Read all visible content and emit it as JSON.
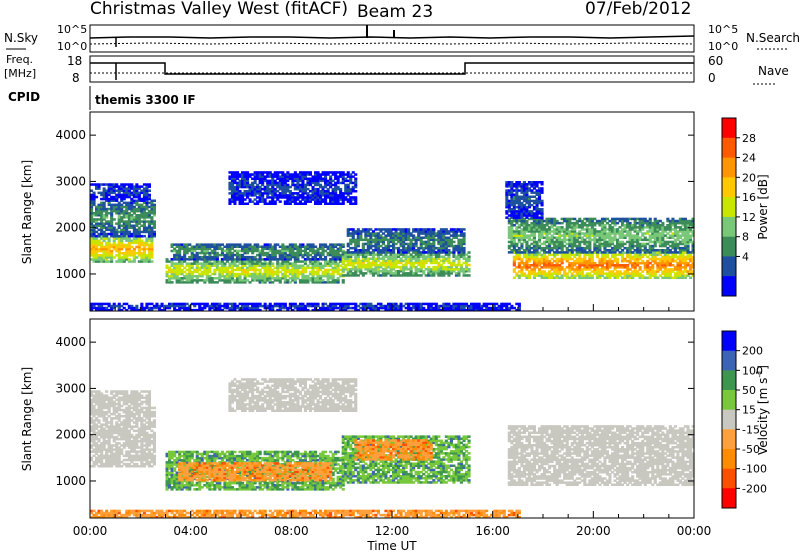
{
  "header": {
    "station": "Christmas Valley West (fitACF)",
    "beam": "Beam 23",
    "date": "07/Feb/2012",
    "cpid_label": "CPID",
    "cpid_value": "themis 3300 IF"
  },
  "side_panels": {
    "nsky_label": "N.Sky",
    "nsky_ticks": [
      "10^5",
      "10^0"
    ],
    "nsearch_label": "N.Search",
    "nsearch_ticks": [
      "10^5",
      "10^0"
    ],
    "freq_label_line1": "Freq.",
    "freq_label_line2": "[MHz]",
    "freq_ticks": [
      "18",
      "8"
    ],
    "nave_label": "Nave",
    "nave_ticks": [
      "60",
      "0"
    ]
  },
  "chart_data": [
    {
      "type": "heatmap",
      "name": "power",
      "xlabel": "",
      "ylabel": "Slant Range [km]",
      "x_range_hours": [
        0,
        24
      ],
      "ylim": [
        200,
        4500
      ],
      "y_ticks": [
        "1000",
        "2000",
        "3000",
        "4000"
      ],
      "colorbar": {
        "label": "Power [dB]",
        "ticks": [
          "28",
          "24",
          "20",
          "16",
          "12",
          "8",
          "4"
        ],
        "colors": [
          "#ff0000",
          "#ff5a00",
          "#ff9600",
          "#ffc800",
          "#c8e600",
          "#78c878",
          "#3c8c5a",
          "#1e50a0",
          "#0000ff"
        ]
      },
      "echo_bands": [
        {
          "t0": 0.0,
          "t1": 2.5,
          "r0": 1250,
          "r1": 1800,
          "level": 22
        },
        {
          "t0": 0.0,
          "t1": 2.6,
          "r0": 1800,
          "r1": 2600,
          "level": 11
        },
        {
          "t0": 0.0,
          "t1": 2.4,
          "r0": 2600,
          "r1": 2950,
          "level": 6
        },
        {
          "t0": 3.0,
          "t1": 10.0,
          "r0": 800,
          "r1": 1300,
          "level": 18
        },
        {
          "t0": 3.2,
          "t1": 10.0,
          "r0": 1300,
          "r1": 1650,
          "level": 11
        },
        {
          "t0": 5.5,
          "t1": 10.5,
          "r0": 2500,
          "r1": 3200,
          "level": 6
        },
        {
          "t0": 10.0,
          "t1": 15.0,
          "r0": 950,
          "r1": 1450,
          "level": 18
        },
        {
          "t0": 10.2,
          "t1": 14.8,
          "r0": 1450,
          "r1": 1950,
          "level": 10
        },
        {
          "t0": 16.8,
          "t1": 24.0,
          "r0": 900,
          "r1": 1450,
          "level": 26
        },
        {
          "t0": 16.6,
          "t1": 24.0,
          "r0": 1450,
          "r1": 2200,
          "level": 14
        },
        {
          "t0": 16.5,
          "t1": 18.0,
          "r0": 2200,
          "r1": 3000,
          "level": 7
        },
        {
          "t0": 0.0,
          "t1": 17.0,
          "r0": 200,
          "r1": 350,
          "level": 6
        }
      ]
    },
    {
      "type": "heatmap",
      "name": "velocity",
      "xlabel": "Time UT",
      "ylabel": "Slant Range [km]",
      "x_range_hours": [
        0,
        24
      ],
      "x_ticks": [
        "00:00",
        "04:00",
        "08:00",
        "12:00",
        "16:00",
        "20:00",
        "00:00"
      ],
      "ylim": [
        200,
        4500
      ],
      "y_ticks": [
        "1000",
        "2000",
        "3000",
        "4000"
      ],
      "colorbar": {
        "label": "Velocity [m s",
        "label_sup": "-1",
        "label_end": "]",
        "ticks": [
          "200",
          "100",
          "50",
          "15",
          "-15",
          "-50",
          "-100",
          "-200"
        ],
        "colors": [
          "#0000ff",
          "#3c64b4",
          "#3c9650",
          "#78c83c",
          "#c8c8c0",
          "#ffa03c",
          "#ff8c00",
          "#ff5000",
          "#ff0000"
        ]
      },
      "echo_bands": [
        {
          "t0": 0.0,
          "t1": 2.6,
          "r0": 1300,
          "r1": 2600,
          "class": "ground"
        },
        {
          "t0": 0.0,
          "t1": 2.4,
          "r0": 2600,
          "r1": 2950,
          "class": "ground"
        },
        {
          "t0": 3.0,
          "t1": 10.0,
          "r0": 800,
          "r1": 1650,
          "class": "pos"
        },
        {
          "t0": 3.5,
          "t1": 9.5,
          "r0": 1000,
          "r1": 1400,
          "class": "neg"
        },
        {
          "t0": 5.5,
          "t1": 10.5,
          "r0": 2500,
          "r1": 3200,
          "class": "ground"
        },
        {
          "t0": 10.0,
          "t1": 15.0,
          "r0": 950,
          "r1": 1950,
          "class": "pos"
        },
        {
          "t0": 10.5,
          "t1": 13.5,
          "r0": 1450,
          "r1": 1900,
          "class": "neg"
        },
        {
          "t0": 16.6,
          "t1": 24.0,
          "r0": 900,
          "r1": 2200,
          "class": "ground"
        },
        {
          "t0": 0.0,
          "t1": 17.0,
          "r0": 200,
          "r1": 350,
          "class": "neg"
        }
      ]
    }
  ]
}
